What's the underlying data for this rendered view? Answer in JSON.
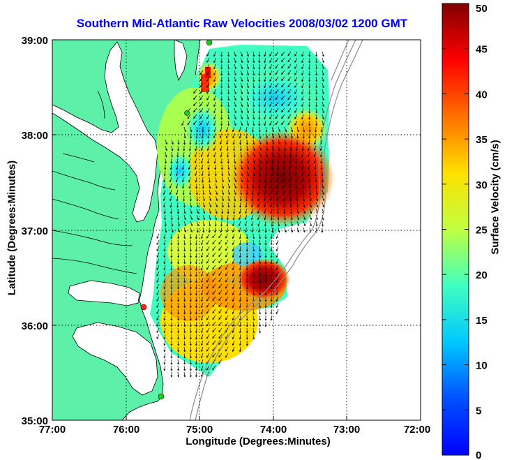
{
  "title": "Southern Mid-Atlantic Raw Velocities 2008/03/02 1200 GMT",
  "xlabel": "Longitude (Degrees:Minutes)",
  "ylabel": "Latitude (Degrees:Minutes)",
  "colorbar": {
    "label": "Surface Velocity (cm/s)",
    "range": [
      0,
      50
    ],
    "ticks": [
      "0",
      "5",
      "10",
      "15",
      "20",
      "25",
      "30",
      "35",
      "40",
      "45",
      "50"
    ]
  },
  "chart_data": {
    "type": "heatmap",
    "x_ticks": [
      "77:00",
      "76:00",
      "75:00",
      "74:00",
      "73:00",
      "72:00"
    ],
    "y_ticks": [
      "39:00",
      "38:00",
      "37:00",
      "36:00",
      "35:00"
    ],
    "xlim": [
      -77,
      -72
    ],
    "ylim": [
      35,
      39
    ],
    "grid": true,
    "colormap": "jet",
    "land_color": "#5cf0a8",
    "station_colors": [
      "#22cc22",
      "#ff2222"
    ]
  }
}
